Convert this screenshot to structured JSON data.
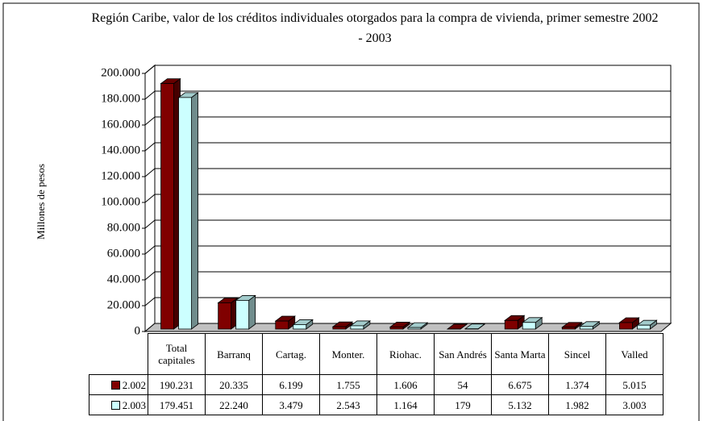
{
  "chart_data": {
    "type": "bar3d",
    "title": "Región Caribe, valor de los créditos individuales otorgados para la compra de vivienda, primer semestre 2002 - 2003",
    "y_label": "Millones de pesos",
    "categories": [
      "Total capitales",
      "Barranq",
      "Cartag.",
      "Monter.",
      "Riohac.",
      "San Andrés",
      "Santa Marta",
      "Sincel",
      "Valled"
    ],
    "series": [
      {
        "name": "2.002",
        "color": "#800000",
        "values": [
          190231,
          20335,
          6199,
          1755,
          1606,
          54,
          6675,
          1374,
          5015
        ],
        "value_labels": [
          "190.231",
          "20.335",
          "6.199",
          "1.755",
          "1.606",
          "54",
          "6.675",
          "1.374",
          "5.015"
        ]
      },
      {
        "name": "2.003",
        "color": "#ccffff",
        "values": [
          179451,
          22240,
          3479,
          2543,
          1164,
          179,
          5132,
          1982,
          3003
        ],
        "value_labels": [
          "179.451",
          "22.240",
          "3.479",
          "2.543",
          "1.164",
          "179",
          "5.132",
          "1.982",
          "3.003"
        ]
      }
    ],
    "ylim": [
      0,
      200000
    ],
    "yticks": [
      0,
      {
        "value": 20000,
        "label": "20.000"
      },
      {
        "value": 40000,
        "label": "40.000"
      },
      {
        "value": 60000,
        "label": "60.000"
      },
      {
        "value": 80000,
        "label": "80.000"
      },
      {
        "value": 100000,
        "label": "100.000"
      },
      {
        "value": 120000,
        "label": "120.000"
      },
      {
        "value": 140000,
        "label": "140.000"
      },
      {
        "value": 160000,
        "label": "160.000"
      },
      {
        "value": 180000,
        "label": "180.000"
      },
      {
        "value": 200000,
        "label": "200.000"
      }
    ],
    "grid": true
  }
}
